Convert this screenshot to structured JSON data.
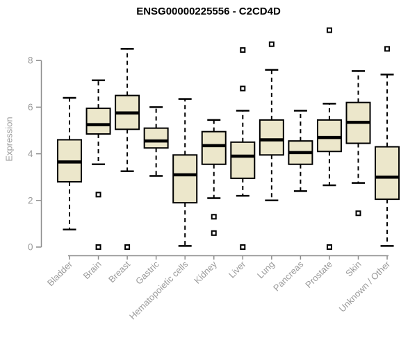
{
  "chart_data": {
    "type": "boxplot",
    "title": "ENSG00000225556 - C2CD4D",
    "xlabel": "",
    "ylabel": "Expression",
    "y_axis": {
      "ticks": [
        0,
        2,
        4,
        6,
        8
      ],
      "range": [
        0,
        9.6
      ],
      "grid": false
    },
    "categories": [
      "Bladder",
      "Brain",
      "Breast",
      "Gastric",
      "Hematopoietic cells",
      "Kidney",
      "Liver",
      "Lung",
      "Pancreas",
      "Prostate",
      "Skin",
      "Unknown / Other"
    ],
    "series": [
      {
        "name": "Bladder",
        "whisker_low": 0.75,
        "q1": 2.8,
        "median": 3.65,
        "q3": 4.6,
        "whisker_high": 6.4,
        "outliers": []
      },
      {
        "name": "Brain",
        "whisker_low": 3.55,
        "q1": 4.85,
        "median": 5.25,
        "q3": 5.95,
        "whisker_high": 7.15,
        "outliers": [
          2.25,
          0.0
        ]
      },
      {
        "name": "Breast",
        "whisker_low": 3.25,
        "q1": 5.05,
        "median": 5.75,
        "q3": 6.5,
        "whisker_high": 8.5,
        "outliers": [
          0.0
        ]
      },
      {
        "name": "Gastric",
        "whisker_low": 3.05,
        "q1": 4.25,
        "median": 4.55,
        "q3": 5.1,
        "whisker_high": 6.0,
        "outliers": []
      },
      {
        "name": "Hematopoietic cells",
        "whisker_low": 0.05,
        "q1": 1.9,
        "median": 3.1,
        "q3": 3.95,
        "whisker_high": 6.35,
        "outliers": []
      },
      {
        "name": "Kidney",
        "whisker_low": 2.1,
        "q1": 3.55,
        "median": 4.35,
        "q3": 4.95,
        "whisker_high": 5.45,
        "outliers": [
          1.3,
          0.6
        ]
      },
      {
        "name": "Liver",
        "whisker_low": 2.2,
        "q1": 2.95,
        "median": 3.9,
        "q3": 4.5,
        "whisker_high": 5.85,
        "outliers": [
          8.45,
          6.8,
          0.0
        ]
      },
      {
        "name": "Lung",
        "whisker_low": 2.0,
        "q1": 3.95,
        "median": 4.6,
        "q3": 5.45,
        "whisker_high": 7.6,
        "outliers": [
          8.7
        ]
      },
      {
        "name": "Pancreas",
        "whisker_low": 2.4,
        "q1": 3.55,
        "median": 4.05,
        "q3": 4.55,
        "whisker_high": 5.85,
        "outliers": []
      },
      {
        "name": "Prostate",
        "whisker_low": 2.65,
        "q1": 4.1,
        "median": 4.7,
        "q3": 5.45,
        "whisker_high": 6.15,
        "outliers": [
          9.3,
          0.0
        ]
      },
      {
        "name": "Skin",
        "whisker_low": 2.75,
        "q1": 4.45,
        "median": 5.35,
        "q3": 6.2,
        "whisker_high": 7.55,
        "outliers": [
          1.45
        ]
      },
      {
        "name": "Unknown / Other",
        "whisker_low": 0.05,
        "q1": 2.05,
        "median": 3.0,
        "q3": 4.3,
        "whisker_high": 7.4,
        "outliers": [
          8.5
        ]
      }
    ],
    "style": {
      "box_fill": "#ece7cb",
      "box_stroke": "#000000",
      "axis_line_color": "#8c8c8c",
      "axis_text_color": "#9a9a9a",
      "title_color": "#000000",
      "background": "#ffffff"
    }
  }
}
